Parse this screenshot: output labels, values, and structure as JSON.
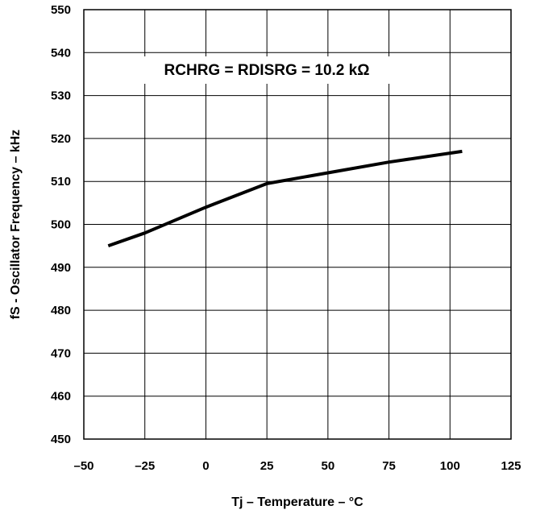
{
  "chart_data": {
    "type": "line",
    "xlabel": "Tj – Temperature – °C",
    "ylabel": "fS - Oscillator Frequency – kHz",
    "annotation": "RCHRG = RDISRG = 10.2 kΩ",
    "xlim": [
      -50,
      125
    ],
    "ylim": [
      450,
      550
    ],
    "xticks": [
      -50,
      -25,
      0,
      25,
      50,
      75,
      100,
      125
    ],
    "yticks": [
      450,
      460,
      470,
      480,
      490,
      500,
      510,
      520,
      530,
      540,
      550
    ],
    "xtick_labels": [
      "–50",
      "–25",
      "0",
      "25",
      "50",
      "75",
      "100",
      "125"
    ],
    "ytick_labels": [
      "450",
      "460",
      "470",
      "480",
      "490",
      "500",
      "510",
      "520",
      "530",
      "540",
      "550"
    ],
    "grid": true,
    "series": [
      {
        "x": [
          -40,
          -25,
          0,
          25,
          50,
          75,
          105
        ],
        "y": [
          495,
          498,
          504,
          509.5,
          512,
          514.5,
          517
        ]
      }
    ]
  },
  "colors": {
    "line": "#000000",
    "grid": "#000000",
    "background": "#ffffff"
  }
}
